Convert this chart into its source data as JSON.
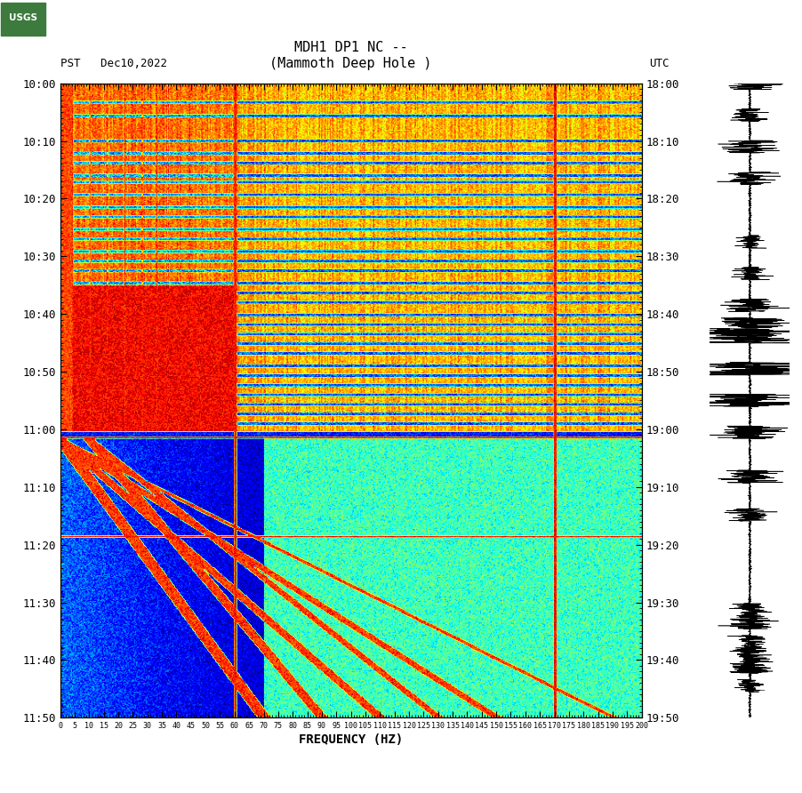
{
  "title_line1": "MDH1 DP1 NC --",
  "title_line2": "(Mammoth Deep Hole )",
  "left_label": "PST   Dec10,2022",
  "right_label": "UTC",
  "xlabel": "FREQUENCY (HZ)",
  "freq_min": 0,
  "freq_max": 200,
  "ytick_pst": [
    "10:00",
    "10:10",
    "10:20",
    "10:30",
    "10:40",
    "10:50",
    "11:00",
    "11:10",
    "11:20",
    "11:30",
    "11:40",
    "11:50"
  ],
  "ytick_utc": [
    "18:00",
    "18:10",
    "18:20",
    "18:30",
    "18:40",
    "18:50",
    "19:00",
    "19:10",
    "19:20",
    "19:30",
    "19:40",
    "19:50"
  ],
  "xtick_labels": [
    "0",
    "5",
    "10",
    "15",
    "20",
    "25",
    "30",
    "35",
    "40",
    "45",
    "50",
    "55",
    "60",
    "65",
    "70",
    "75",
    "80",
    "85",
    "90",
    "95",
    "100",
    "105",
    "110",
    "115",
    "120",
    "125",
    "130",
    "135",
    "140",
    "145",
    "150",
    "155",
    "160",
    "165",
    "170",
    "175",
    "180",
    "185",
    "190",
    "195",
    "200"
  ],
  "figsize": [
    9.02,
    8.92
  ],
  "dpi": 100,
  "bg_color": "#ffffff",
  "colormap": "jet",
  "n_freq": 600,
  "n_time": 660,
  "random_seed": 12345
}
